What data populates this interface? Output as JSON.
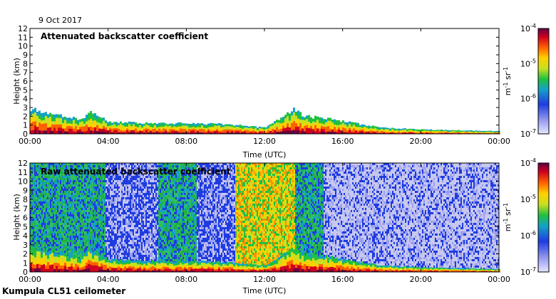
{
  "date_label": "9 Oct 2017",
  "footer": "Kumpula CL51 ceilometer",
  "chart_data": [
    {
      "type": "heatmap",
      "title": "Attenuated backscatter coefficient",
      "xlabel": "Time (UTC)",
      "ylabel": "Height (km)",
      "x_ticks": [
        "00:00",
        "04:00",
        "08:00",
        "12:00",
        "16:00",
        "20:00",
        "00:00"
      ],
      "y_ticks": [
        "0",
        "1",
        "2",
        "3",
        "4",
        "5",
        "6",
        "7",
        "8",
        "9",
        "10",
        "11",
        "12"
      ],
      "xlim": [
        "00:00",
        "24:00"
      ],
      "ylim": [
        0,
        12
      ],
      "colorbar": {
        "label": "m-1 sr-1",
        "scale": "log",
        "ticks": [
          "10-7",
          "10-6",
          "10-5",
          "10-4"
        ]
      },
      "layer_profile_km": [
        {
          "t": 0,
          "top": 2.8
        },
        {
          "t": 1,
          "top": 2.4
        },
        {
          "t": 2,
          "top": 1.9
        },
        {
          "t": 2.6,
          "top": 1.6
        },
        {
          "t": 3.0,
          "top": 2.6
        },
        {
          "t": 3.4,
          "top": 2.2
        },
        {
          "t": 4,
          "top": 1.4
        },
        {
          "t": 6,
          "top": 1.2
        },
        {
          "t": 8,
          "top": 1.2
        },
        {
          "t": 10,
          "top": 1.1
        },
        {
          "t": 12,
          "top": 0.7
        },
        {
          "t": 13.5,
          "top": 2.8
        },
        {
          "t": 14,
          "top": 2.0
        },
        {
          "t": 15,
          "top": 1.8
        },
        {
          "t": 16,
          "top": 1.4
        },
        {
          "t": 18,
          "top": 0.7
        },
        {
          "t": 20,
          "top": 0.5
        },
        {
          "t": 22,
          "top": 0.4
        },
        {
          "t": 24,
          "top": 0.3
        }
      ]
    },
    {
      "type": "heatmap",
      "title": "Raw attenuated backscatter coefficient",
      "xlabel": "Time (UTC)",
      "ylabel": "Height (km)",
      "x_ticks": [
        "00:00",
        "04:00",
        "08:00",
        "12:00",
        "16:00",
        "20:00",
        "00:00"
      ],
      "y_ticks": [
        "0",
        "1",
        "2",
        "3",
        "4",
        "5",
        "6",
        "7",
        "8",
        "9",
        "10",
        "11",
        "12"
      ],
      "xlim": [
        "00:00",
        "24:00"
      ],
      "ylim": [
        0,
        12
      ],
      "colorbar": {
        "label": "m-1 sr-1",
        "scale": "log",
        "ticks": [
          "10-7",
          "10-6",
          "10-5",
          "10-4"
        ]
      },
      "noise_regimes": [
        {
          "from": 0,
          "to": 3.8,
          "level": "green"
        },
        {
          "from": 3.8,
          "to": 6.5,
          "level": "blue"
        },
        {
          "from": 6.5,
          "to": 8.5,
          "level": "green"
        },
        {
          "from": 8.5,
          "to": 10.5,
          "level": "blue"
        },
        {
          "from": 10.5,
          "to": 13.5,
          "level": "yellow-green"
        },
        {
          "from": 13.5,
          "to": 15.0,
          "level": "green"
        },
        {
          "from": 15.0,
          "to": 24,
          "level": "sparse-blue"
        }
      ]
    }
  ],
  "colors": {
    "plot_bg": "#ffffff",
    "noise_bg": "#c8c8ee"
  }
}
